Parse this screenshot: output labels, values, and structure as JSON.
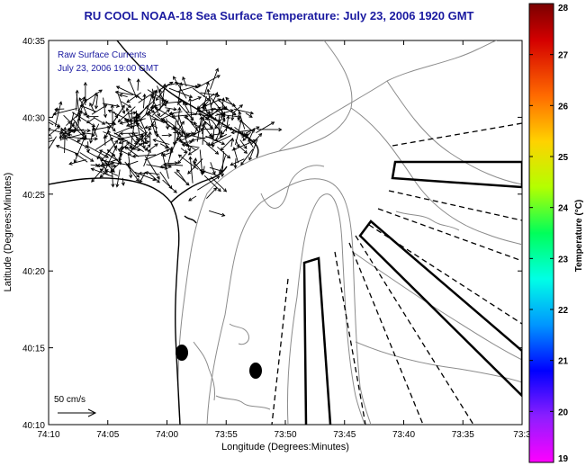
{
  "title": "RU COOL  NOAA-18  Sea Surface Temperature:  July 23, 2006 1920 GMT",
  "annotation": {
    "line1": "Raw Surface Currents",
    "line2": "July 23, 2006 19:00 GMT"
  },
  "scale_label": "50 cm/s",
  "axes": {
    "xlabel": "Longitude (Degrees:Minutes)",
    "ylabel": "Latitude (Degrees:Minutes)",
    "x_ticks": [
      "74:10",
      "74:05",
      "74:00",
      "73:55",
      "73:50",
      "73:45",
      "73:40",
      "73:35",
      "73:3"
    ],
    "y_ticks": [
      "40:35",
      "40:30",
      "40:25",
      "40:20",
      "40:15",
      "40:10"
    ]
  },
  "colorbar": {
    "label": "Temperature (°C)",
    "ticks": [
      "28",
      "27",
      "26",
      "25",
      "24",
      "23",
      "22",
      "21",
      "20",
      "19"
    ],
    "min": 19,
    "max": 28
  },
  "colors": {
    "title": "#1a1aa0",
    "frame": "#000000",
    "contour": "#8c8c8c",
    "vector": "#000000"
  }
}
